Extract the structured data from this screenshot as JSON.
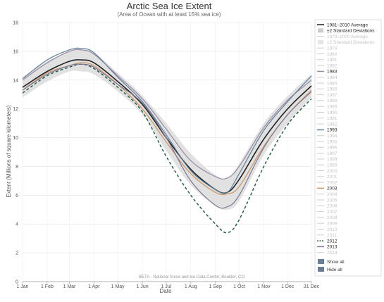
{
  "chart_data": {
    "type": "line",
    "title": "Arctic Sea Ice Extent",
    "subtitle": "(Area of Ocean with at least 15% sea ice)",
    "xlabel": "Date",
    "ylabel": "Extent (Millions of square kilometers)",
    "ylim": [
      0,
      18
    ],
    "y_ticks": [
      0,
      2,
      4,
      6,
      8,
      10,
      12,
      14,
      16,
      18
    ],
    "x_ticks": [
      {
        "day": 1,
        "label": "1 Jan"
      },
      {
        "day": 32,
        "label": "1 Feb"
      },
      {
        "day": 60,
        "label": "1 Mar"
      },
      {
        "day": 91,
        "label": "1 Apr"
      },
      {
        "day": 121,
        "label": "1 May"
      },
      {
        "day": 152,
        "label": "1 Jun"
      },
      {
        "day": 182,
        "label": "1 Jul"
      },
      {
        "day": 213,
        "label": "1 Aug"
      },
      {
        "day": 244,
        "label": "1 Sep"
      },
      {
        "day": 274,
        "label": "1 Oct"
      },
      {
        "day": 305,
        "label": "1 Nov"
      },
      {
        "day": 335,
        "label": "1 Dec"
      },
      {
        "day": 365,
        "label": "31 Dec"
      }
    ],
    "xlim": [
      1,
      365
    ],
    "grid": true,
    "legend_position": "right",
    "credit": "BETA - National Snow and Ice Data Center, Boulder, CO",
    "band": {
      "name": "±2 Standard Deviations",
      "x": [
        1,
        32,
        60,
        75,
        91,
        121,
        152,
        182,
        213,
        244,
        259,
        274,
        305,
        335,
        365
      ],
      "upper": [
        14.2,
        15.3,
        16.0,
        16.1,
        15.9,
        14.5,
        12.9,
        11.0,
        8.9,
        7.4,
        7.2,
        8.2,
        11.0,
        12.9,
        14.4
      ],
      "lower": [
        12.8,
        13.9,
        14.6,
        14.6,
        14.4,
        13.2,
        11.6,
        9.1,
        6.7,
        5.3,
        5.0,
        5.6,
        8.8,
        11.0,
        12.8
      ]
    },
    "series": [
      {
        "name": "1981–2010 Average",
        "color": "#222222",
        "dash": "",
        "width": 1.6,
        "visible": true,
        "x": [
          1,
          32,
          60,
          75,
          91,
          121,
          152,
          182,
          213,
          244,
          259,
          274,
          305,
          335,
          365
        ],
        "values": [
          13.5,
          14.6,
          15.3,
          15.4,
          15.2,
          13.9,
          12.3,
          10.0,
          7.8,
          6.4,
          6.2,
          7.1,
          9.9,
          12.0,
          13.6
        ]
      },
      {
        "name": "1983",
        "color": "#9a8aa5",
        "dash": "",
        "width": 1.2,
        "visible": true,
        "x": [
          1,
          32,
          60,
          75,
          91,
          121,
          152,
          182,
          213,
          244,
          259,
          274,
          305,
          335,
          365
        ],
        "values": [
          14.0,
          15.2,
          16.0,
          16.1,
          15.8,
          14.3,
          12.7,
          10.6,
          8.4,
          7.3,
          7.2,
          8.0,
          10.7,
          12.6,
          14.0
        ]
      },
      {
        "name": "1993",
        "color": "#5f7f99",
        "dash": "",
        "width": 1.2,
        "visible": true,
        "x": [
          1,
          32,
          60,
          75,
          91,
          121,
          152,
          182,
          213,
          244,
          259,
          274,
          305,
          335,
          365
        ],
        "values": [
          14.1,
          15.4,
          16.1,
          16.2,
          15.9,
          14.2,
          12.5,
          10.2,
          7.7,
          6.4,
          6.2,
          7.5,
          10.5,
          12.5,
          14.3
        ]
      },
      {
        "name": "2003",
        "color": "#c9996b",
        "dash": "",
        "width": 1.3,
        "visible": true,
        "x": [
          1,
          32,
          60,
          75,
          91,
          121,
          152,
          182,
          213,
          244,
          259,
          274,
          305,
          335,
          365
        ],
        "values": [
          13.3,
          14.5,
          15.0,
          15.2,
          15.0,
          13.7,
          12.0,
          9.7,
          7.5,
          6.2,
          6.1,
          6.6,
          9.4,
          11.6,
          13.3
        ]
      },
      {
        "name": "2012",
        "color": "#2a5e4e",
        "dash": "4,3",
        "width": 1.5,
        "visible": true,
        "x": [
          1,
          32,
          60,
          75,
          91,
          121,
          152,
          182,
          213,
          244,
          259,
          274,
          305,
          335,
          365
        ],
        "values": [
          13.1,
          14.3,
          14.9,
          15.1,
          14.8,
          13.5,
          11.8,
          8.7,
          6.0,
          4.0,
          3.4,
          4.3,
          8.0,
          10.9,
          12.7
        ]
      },
      {
        "name": "2013",
        "color": "#7e7794",
        "dash": "",
        "width": 1.2,
        "visible": true,
        "x": [
          1,
          32,
          60,
          75,
          91,
          121,
          152,
          182,
          213,
          244,
          259,
          274,
          305,
          335,
          365
        ],
        "values": [
          13.3,
          14.4,
          15.0,
          15.1,
          14.9,
          13.7,
          12.4,
          10.0,
          7.0,
          5.3,
          5.2,
          6.0,
          9.3,
          11.6,
          13.2
        ]
      }
    ],
    "legend": [
      {
        "label": "1981–2010 Average",
        "swatch": "line",
        "color": "#222222",
        "active": true
      },
      {
        "label": "±2 Standard Deviations",
        "swatch": "box",
        "color": "#cccccc",
        "active": true
      },
      {
        "label": "1979–2000 Average",
        "swatch": "line",
        "color": "#cccccc",
        "active": false
      },
      {
        "label": "±2 Standard Deviations",
        "swatch": "box",
        "color": "#e5e5e5",
        "active": false
      },
      {
        "label": "1978",
        "swatch": "line",
        "color": "#cccccc",
        "active": false
      },
      {
        "label": "1980",
        "swatch": "line",
        "color": "#cccccc",
        "active": false
      },
      {
        "label": "1981",
        "swatch": "line",
        "color": "#cccccc",
        "active": false
      },
      {
        "label": "1982",
        "swatch": "line",
        "color": "#cccccc",
        "active": false
      },
      {
        "label": "1983",
        "swatch": "line",
        "color": "#9a8aa5",
        "active": true
      },
      {
        "label": "1984",
        "swatch": "line",
        "color": "#cccccc",
        "active": false
      },
      {
        "label": "1985",
        "swatch": "line",
        "color": "#cccccc",
        "active": false
      },
      {
        "label": "1986",
        "swatch": "line",
        "color": "#cccccc",
        "active": false
      },
      {
        "label": "1987",
        "swatch": "line",
        "color": "#cccccc",
        "active": false
      },
      {
        "label": "1988",
        "swatch": "line",
        "color": "#cccccc",
        "active": false
      },
      {
        "label": "1989",
        "swatch": "line",
        "color": "#cccccc",
        "active": false
      },
      {
        "label": "1990",
        "swatch": "line",
        "color": "#cccccc",
        "active": false
      },
      {
        "label": "1991",
        "swatch": "line",
        "color": "#cccccc",
        "active": false
      },
      {
        "label": "1992",
        "swatch": "line",
        "color": "#cccccc",
        "active": false
      },
      {
        "label": "1993",
        "swatch": "line",
        "color": "#5f7f99",
        "active": true
      },
      {
        "label": "1994",
        "swatch": "line",
        "color": "#cccccc",
        "active": false
      },
      {
        "label": "1995",
        "swatch": "line",
        "color": "#cccccc",
        "active": false
      },
      {
        "label": "1996",
        "swatch": "line",
        "color": "#cccccc",
        "active": false
      },
      {
        "label": "1997",
        "swatch": "line",
        "color": "#cccccc",
        "active": false
      },
      {
        "label": "1998",
        "swatch": "line",
        "color": "#cccccc",
        "active": false
      },
      {
        "label": "1999",
        "swatch": "line",
        "color": "#cccccc",
        "active": false
      },
      {
        "label": "2000",
        "swatch": "line",
        "color": "#cccccc",
        "active": false
      },
      {
        "label": "2001",
        "swatch": "line",
        "color": "#cccccc",
        "active": false
      },
      {
        "label": "2002",
        "swatch": "line",
        "color": "#cccccc",
        "active": false
      },
      {
        "label": "2003",
        "swatch": "line",
        "color": "#c9996b",
        "active": true
      },
      {
        "label": "2004",
        "swatch": "line",
        "color": "#cccccc",
        "active": false
      },
      {
        "label": "2005",
        "swatch": "line",
        "color": "#cccccc",
        "active": false
      },
      {
        "label": "2006",
        "swatch": "line",
        "color": "#cccccc",
        "active": false
      },
      {
        "label": "2007",
        "swatch": "line",
        "color": "#cccccc",
        "active": false
      },
      {
        "label": "2008",
        "swatch": "line",
        "color": "#cccccc",
        "active": false
      },
      {
        "label": "2009",
        "swatch": "line",
        "color": "#cccccc",
        "active": false
      },
      {
        "label": "2010",
        "swatch": "line",
        "color": "#cccccc",
        "active": false
      },
      {
        "label": "2011",
        "swatch": "line",
        "color": "#cccccc",
        "active": false
      },
      {
        "label": "2012",
        "swatch": "dash",
        "color": "#2a5e4e",
        "active": true
      },
      {
        "label": "2013",
        "swatch": "line",
        "color": "#7e7794",
        "active": true
      },
      {
        "label": "2014",
        "swatch": "line",
        "color": "#cccccc",
        "active": false
      }
    ],
    "legend_buttons": [
      {
        "label": "Show all",
        "color": "#6a7f96"
      },
      {
        "label": "Hide all",
        "color": "#6a7f96"
      }
    ]
  }
}
